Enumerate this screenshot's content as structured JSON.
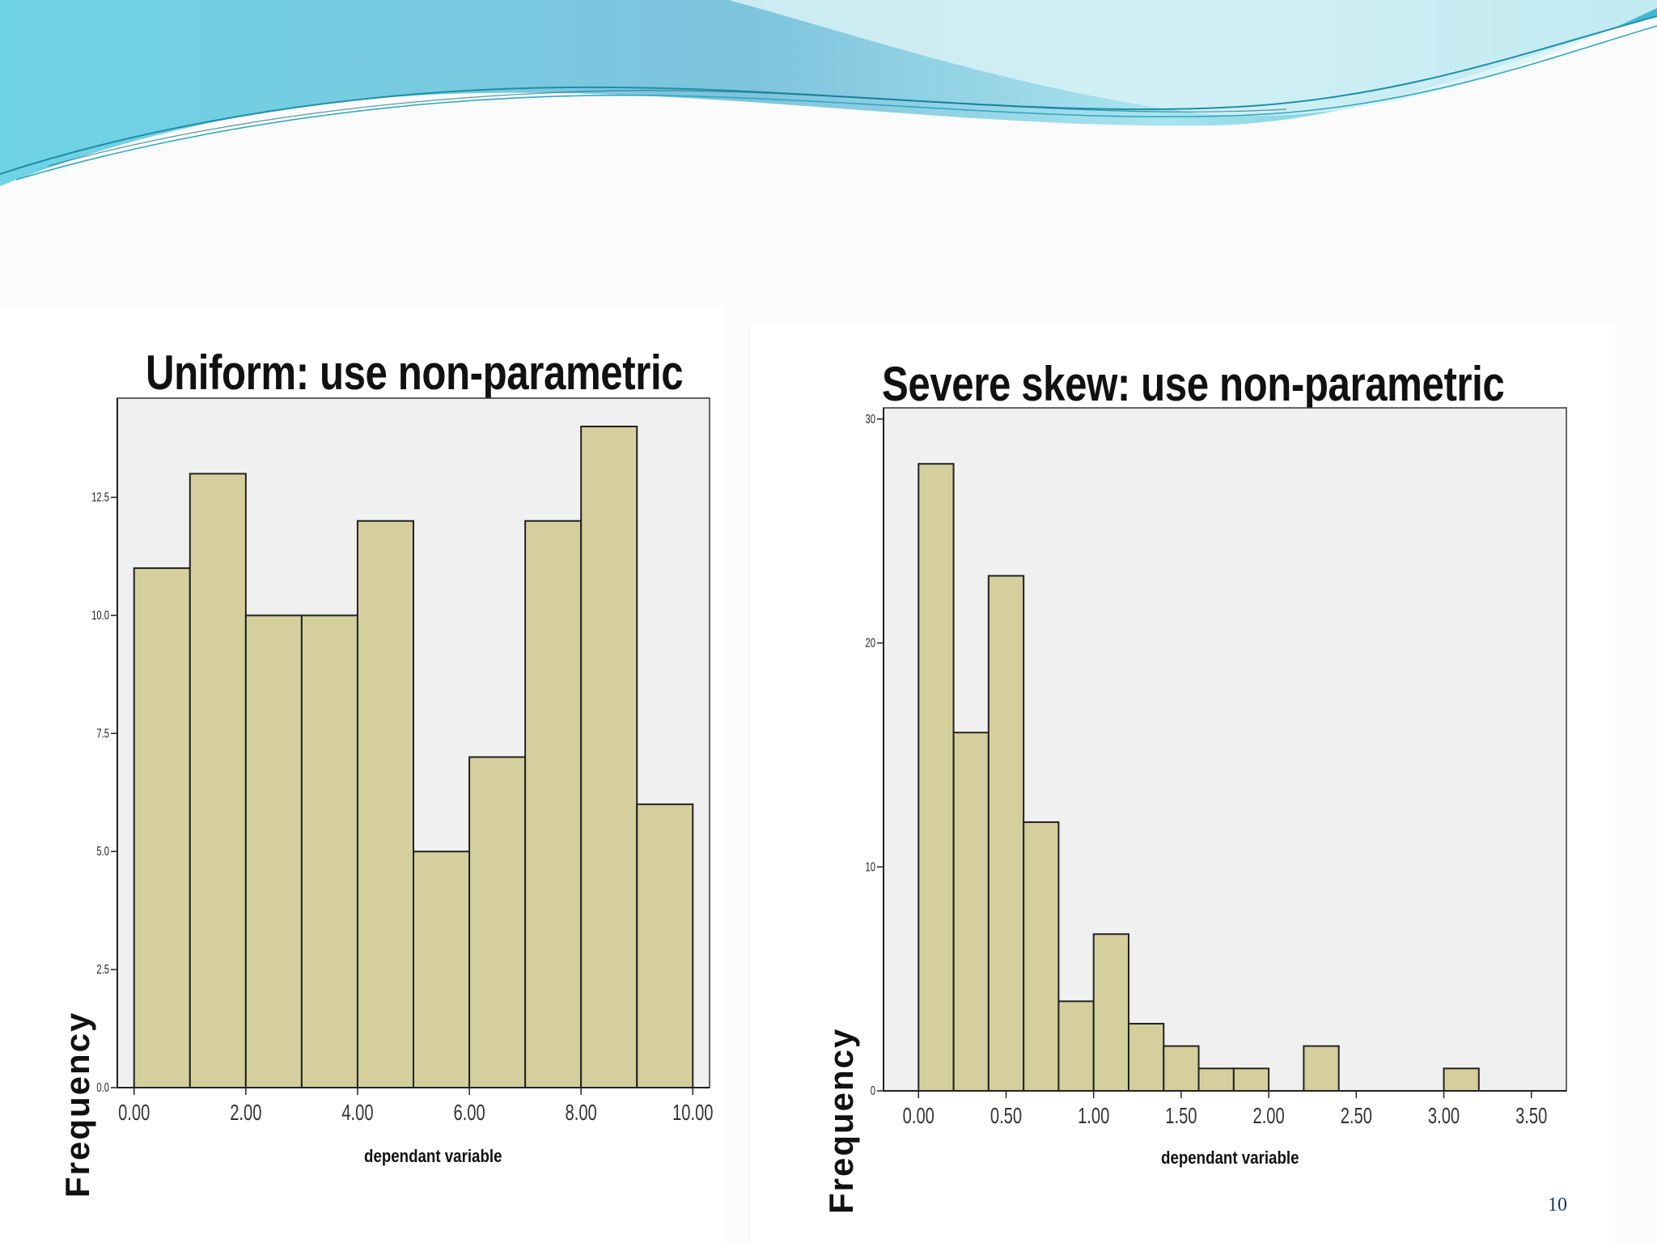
{
  "slide": {
    "page_number": "10",
    "colors": {
      "bar_fill": "#d4cf9c",
      "plot_bg": "#f0f0f0",
      "accent": "#1a9fc0"
    }
  },
  "chart_data": [
    {
      "type": "bar",
      "title": "Uniform: use non-parametric",
      "xlabel": "dependant variable",
      "ylabel": "Frequency",
      "bin_edges": [
        0,
        1,
        2,
        3,
        4,
        5,
        6,
        7,
        8,
        9,
        10
      ],
      "values": [
        11,
        13,
        10,
        10,
        12,
        5,
        7,
        12,
        14,
        6
      ],
      "xlim": [
        -0.3,
        10.3
      ],
      "ylim": [
        0,
        14.6
      ],
      "x_ticks": [
        0,
        2,
        4,
        6,
        8,
        10
      ],
      "x_tick_labels": [
        "0.00",
        "2.00",
        "4.00",
        "6.00",
        "8.00",
        "10.00"
      ],
      "y_ticks": [
        0,
        2.5,
        5,
        7.5,
        10,
        12.5
      ],
      "y_tick_labels": [
        "0.0",
        "2.5",
        "5.0",
        "7.5",
        "10.0",
        "12.5"
      ],
      "grid": false,
      "legend": "none"
    },
    {
      "type": "bar",
      "title": "Severe skew: use non-parametric",
      "xlabel": "dependant variable",
      "ylabel": "Frequency",
      "bin_edges": [
        0,
        0.2,
        0.4,
        0.6,
        0.8,
        1.0,
        1.2,
        1.4,
        1.6,
        1.8,
        2.0,
        2.2,
        2.4,
        2.6,
        2.8,
        3.0,
        3.2
      ],
      "values": [
        28,
        16,
        23,
        12,
        4,
        7,
        3,
        2,
        1,
        1,
        0,
        2,
        0,
        0,
        0,
        1
      ],
      "xlim": [
        -0.2,
        3.7
      ],
      "ylim": [
        0,
        30.5
      ],
      "x_ticks": [
        0,
        0.5,
        1.0,
        1.5,
        2.0,
        2.5,
        3.0,
        3.5
      ],
      "x_tick_labels": [
        "0.00",
        "0.50",
        "1.00",
        "1.50",
        "2.00",
        "2.50",
        "3.00",
        "3.50"
      ],
      "y_ticks": [
        0,
        10,
        20,
        30
      ],
      "y_tick_labels": [
        "0",
        "10",
        "20",
        "30"
      ],
      "grid": false,
      "legend": "none"
    }
  ]
}
